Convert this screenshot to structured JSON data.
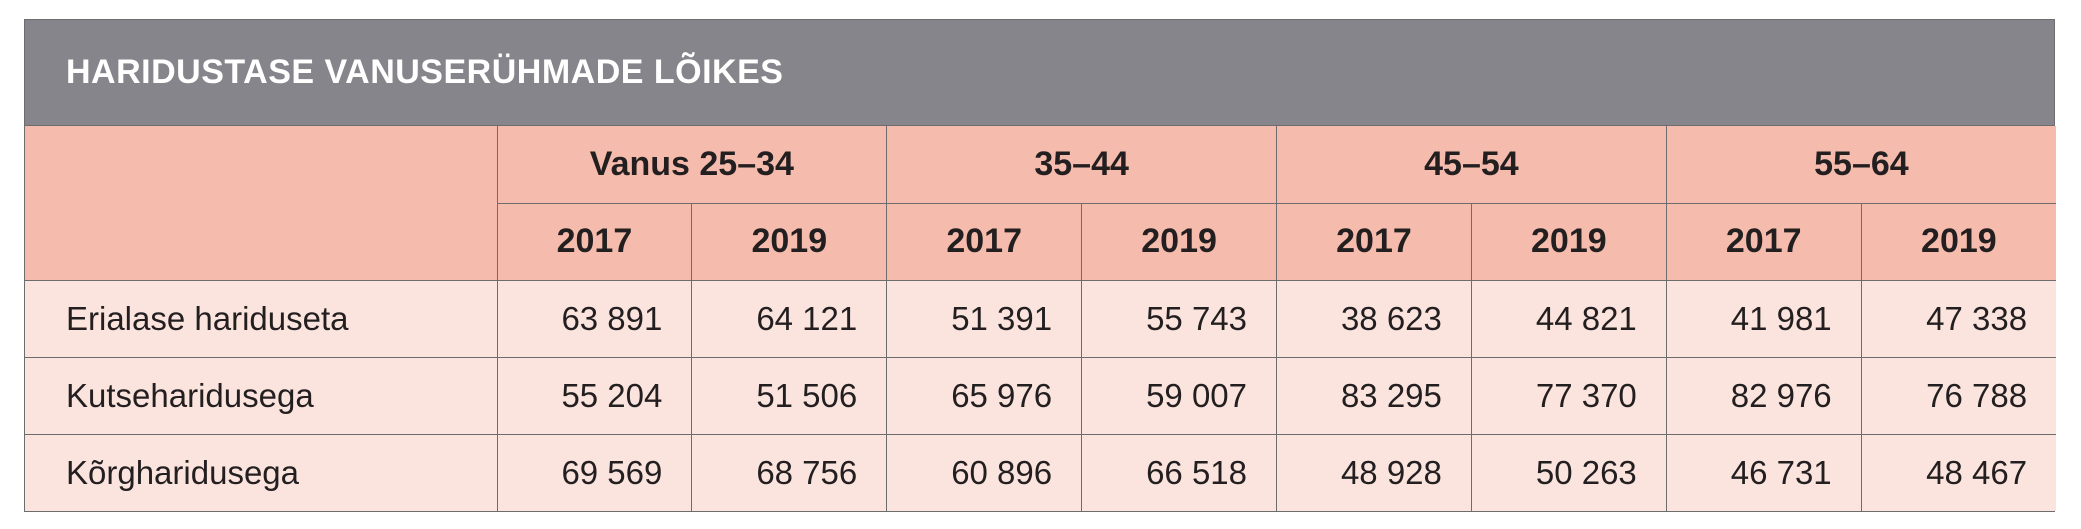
{
  "title": "HARIDUSTASE VANUSERÜHMADE LÕIKES",
  "colors": {
    "title_bar": "#86858b",
    "header_bg": "#f5bcad",
    "body_bg": "#fbe4de",
    "border": "#6d6d6d"
  },
  "age_groups": [
    "Vanus 25–34",
    "35–44",
    "45–54",
    "55–64"
  ],
  "years": [
    "2017",
    "2019",
    "2017",
    "2019",
    "2017",
    "2019",
    "2017",
    "2019"
  ],
  "rows": [
    {
      "label": "Erialase hariduseta",
      "values": [
        "63 891",
        "64 121",
        "51 391",
        "55 743",
        "38 623",
        "44 821",
        "41 981",
        "47 338"
      ]
    },
    {
      "label": "Kutseharidusega",
      "values": [
        "55 204",
        "51 506",
        "65 976",
        "59 007",
        "83 295",
        "77 370",
        "82 976",
        "76 788"
      ]
    },
    {
      "label": "Kõrgharidusega",
      "values": [
        "69 569",
        "68 756",
        "60 896",
        "66 518",
        "48 928",
        "50 263",
        "46 731",
        "48 467"
      ]
    }
  ]
}
